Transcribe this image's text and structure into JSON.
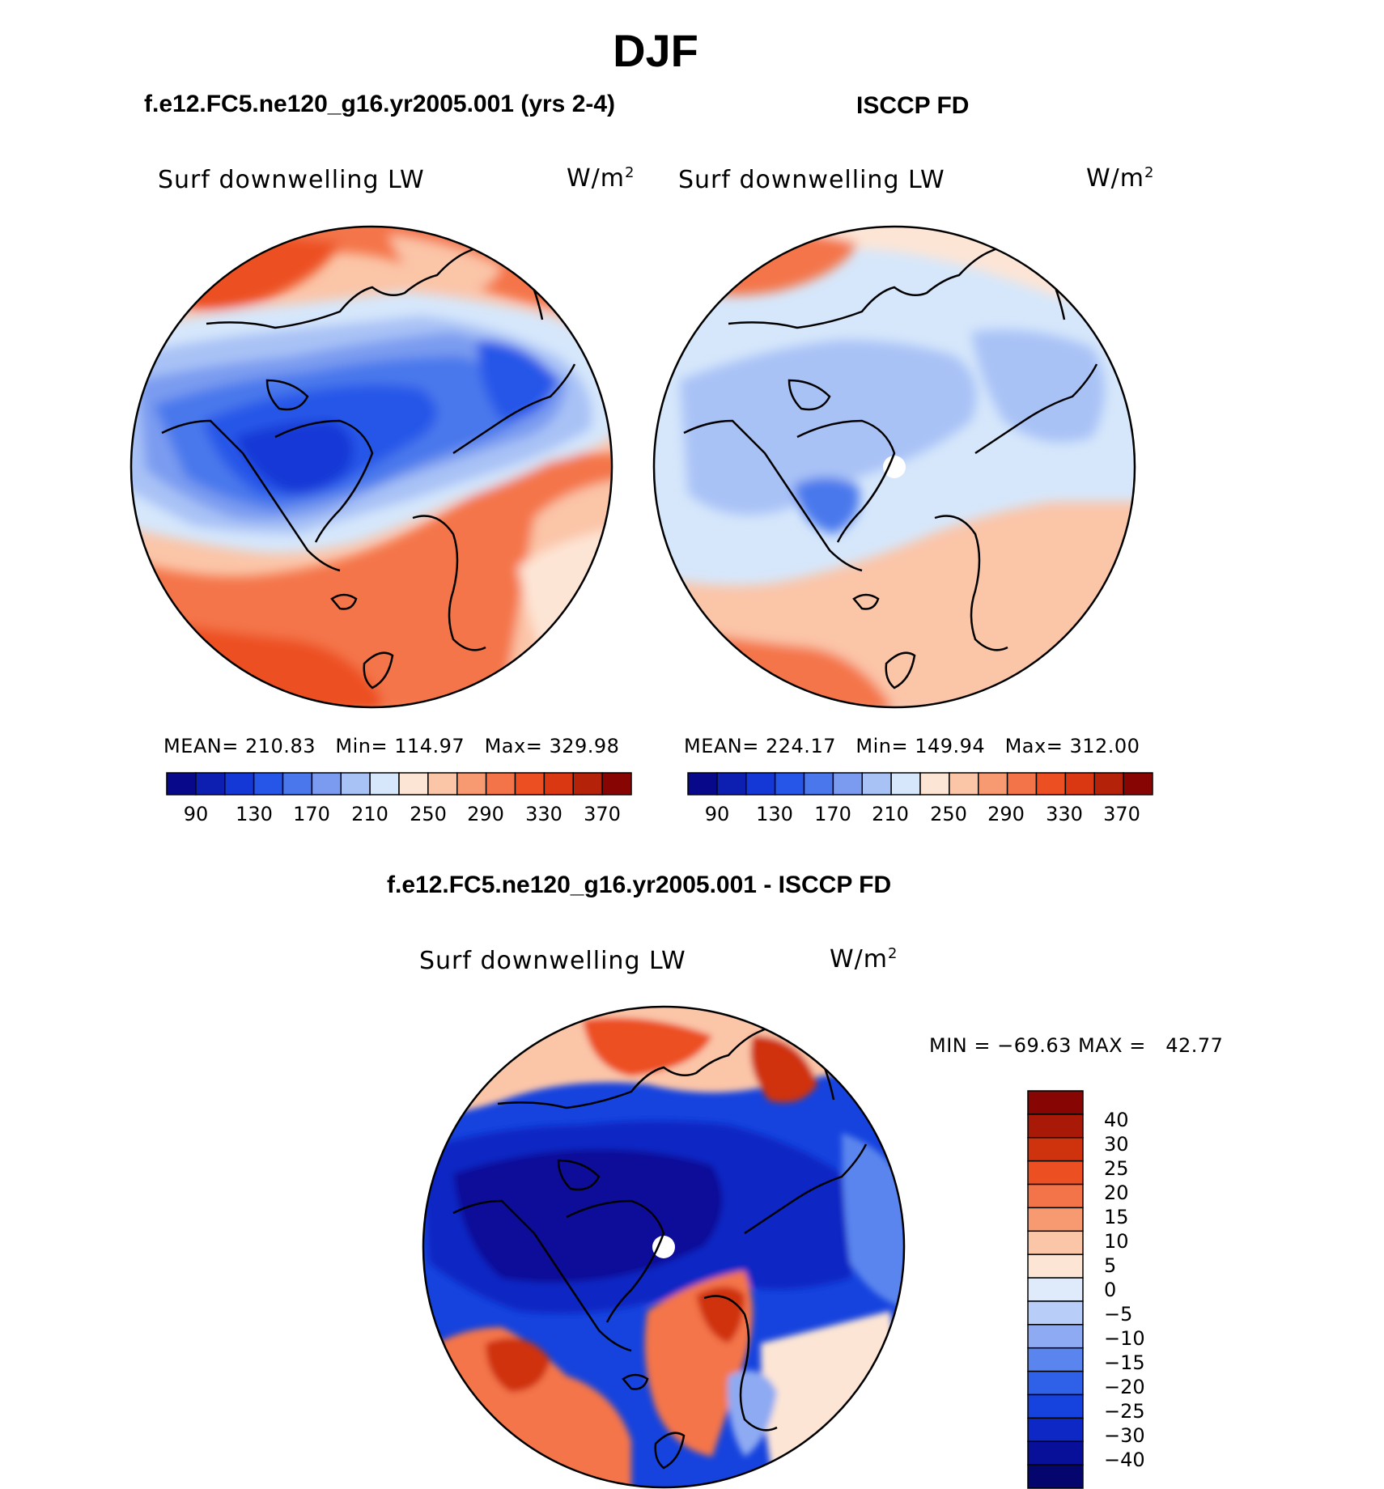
{
  "title": "DJF",
  "panels": [
    {
      "case_title": "f.e12.FC5.ne120_g16.yr2005.001 (yrs 2-4)",
      "variable": "Surf downwelling LW",
      "units_base": "W/m",
      "units_exp": "2",
      "stats": {
        "mean_label": "MEAN=",
        "mean": "210.83",
        "min_label": "Min=",
        "min": "114.97",
        "max_label": "Max=",
        "max": "329.98"
      },
      "colorbar_ticks": [
        "90",
        "130",
        "170",
        "210",
        "250",
        "290",
        "330",
        "370"
      ]
    },
    {
      "case_title": "ISCCP FD",
      "variable": "Surf downwelling LW",
      "units_base": "W/m",
      "units_exp": "2",
      "stats": {
        "mean_label": "MEAN=",
        "mean": "224.17",
        "min_label": "Min=",
        "min": "149.94",
        "max_label": "Max=",
        "max": "312.00"
      },
      "colorbar_ticks": [
        "90",
        "130",
        "170",
        "210",
        "250",
        "290",
        "330",
        "370"
      ]
    }
  ],
  "difference": {
    "case_title": "f.e12.FC5.ne120_g16.yr2005.001 - ISCCP FD",
    "variable": "Surf downwelling LW",
    "units_base": "W/m",
    "units_exp": "2",
    "stats": "MIN = −69.63 MAX =   42.77",
    "colorbar_ticks": [
      "40",
      "30",
      "25",
      "20",
      "15",
      "10",
      "5",
      "0",
      "−5",
      "−10",
      "−15",
      "−20",
      "−25",
      "−30",
      "−40"
    ]
  },
  "colors": {
    "abs_scale": [
      "#08088a",
      "#0c1fb0",
      "#1438d6",
      "#2656e8",
      "#4a78ec",
      "#7a9bf0",
      "#a9c2f6",
      "#d6e7fb",
      "#fde5d5",
      "#fbc5a8",
      "#f79a72",
      "#f4744a",
      "#ec4f22",
      "#d93812",
      "#b32209",
      "#870603"
    ],
    "diff_scale": [
      "#04066e",
      "#08109a",
      "#0d28c4",
      "#1643de",
      "#2e60e8",
      "#5a85ee",
      "#8eaaf2",
      "#b8cdf8",
      "#dfeafb",
      "#fde5d5",
      "#fbc5a8",
      "#f79a72",
      "#f4744a",
      "#ec4f22",
      "#cf330e",
      "#a81a07",
      "#870603"
    ],
    "missing": "#ffffff",
    "coast": "#000000"
  }
}
